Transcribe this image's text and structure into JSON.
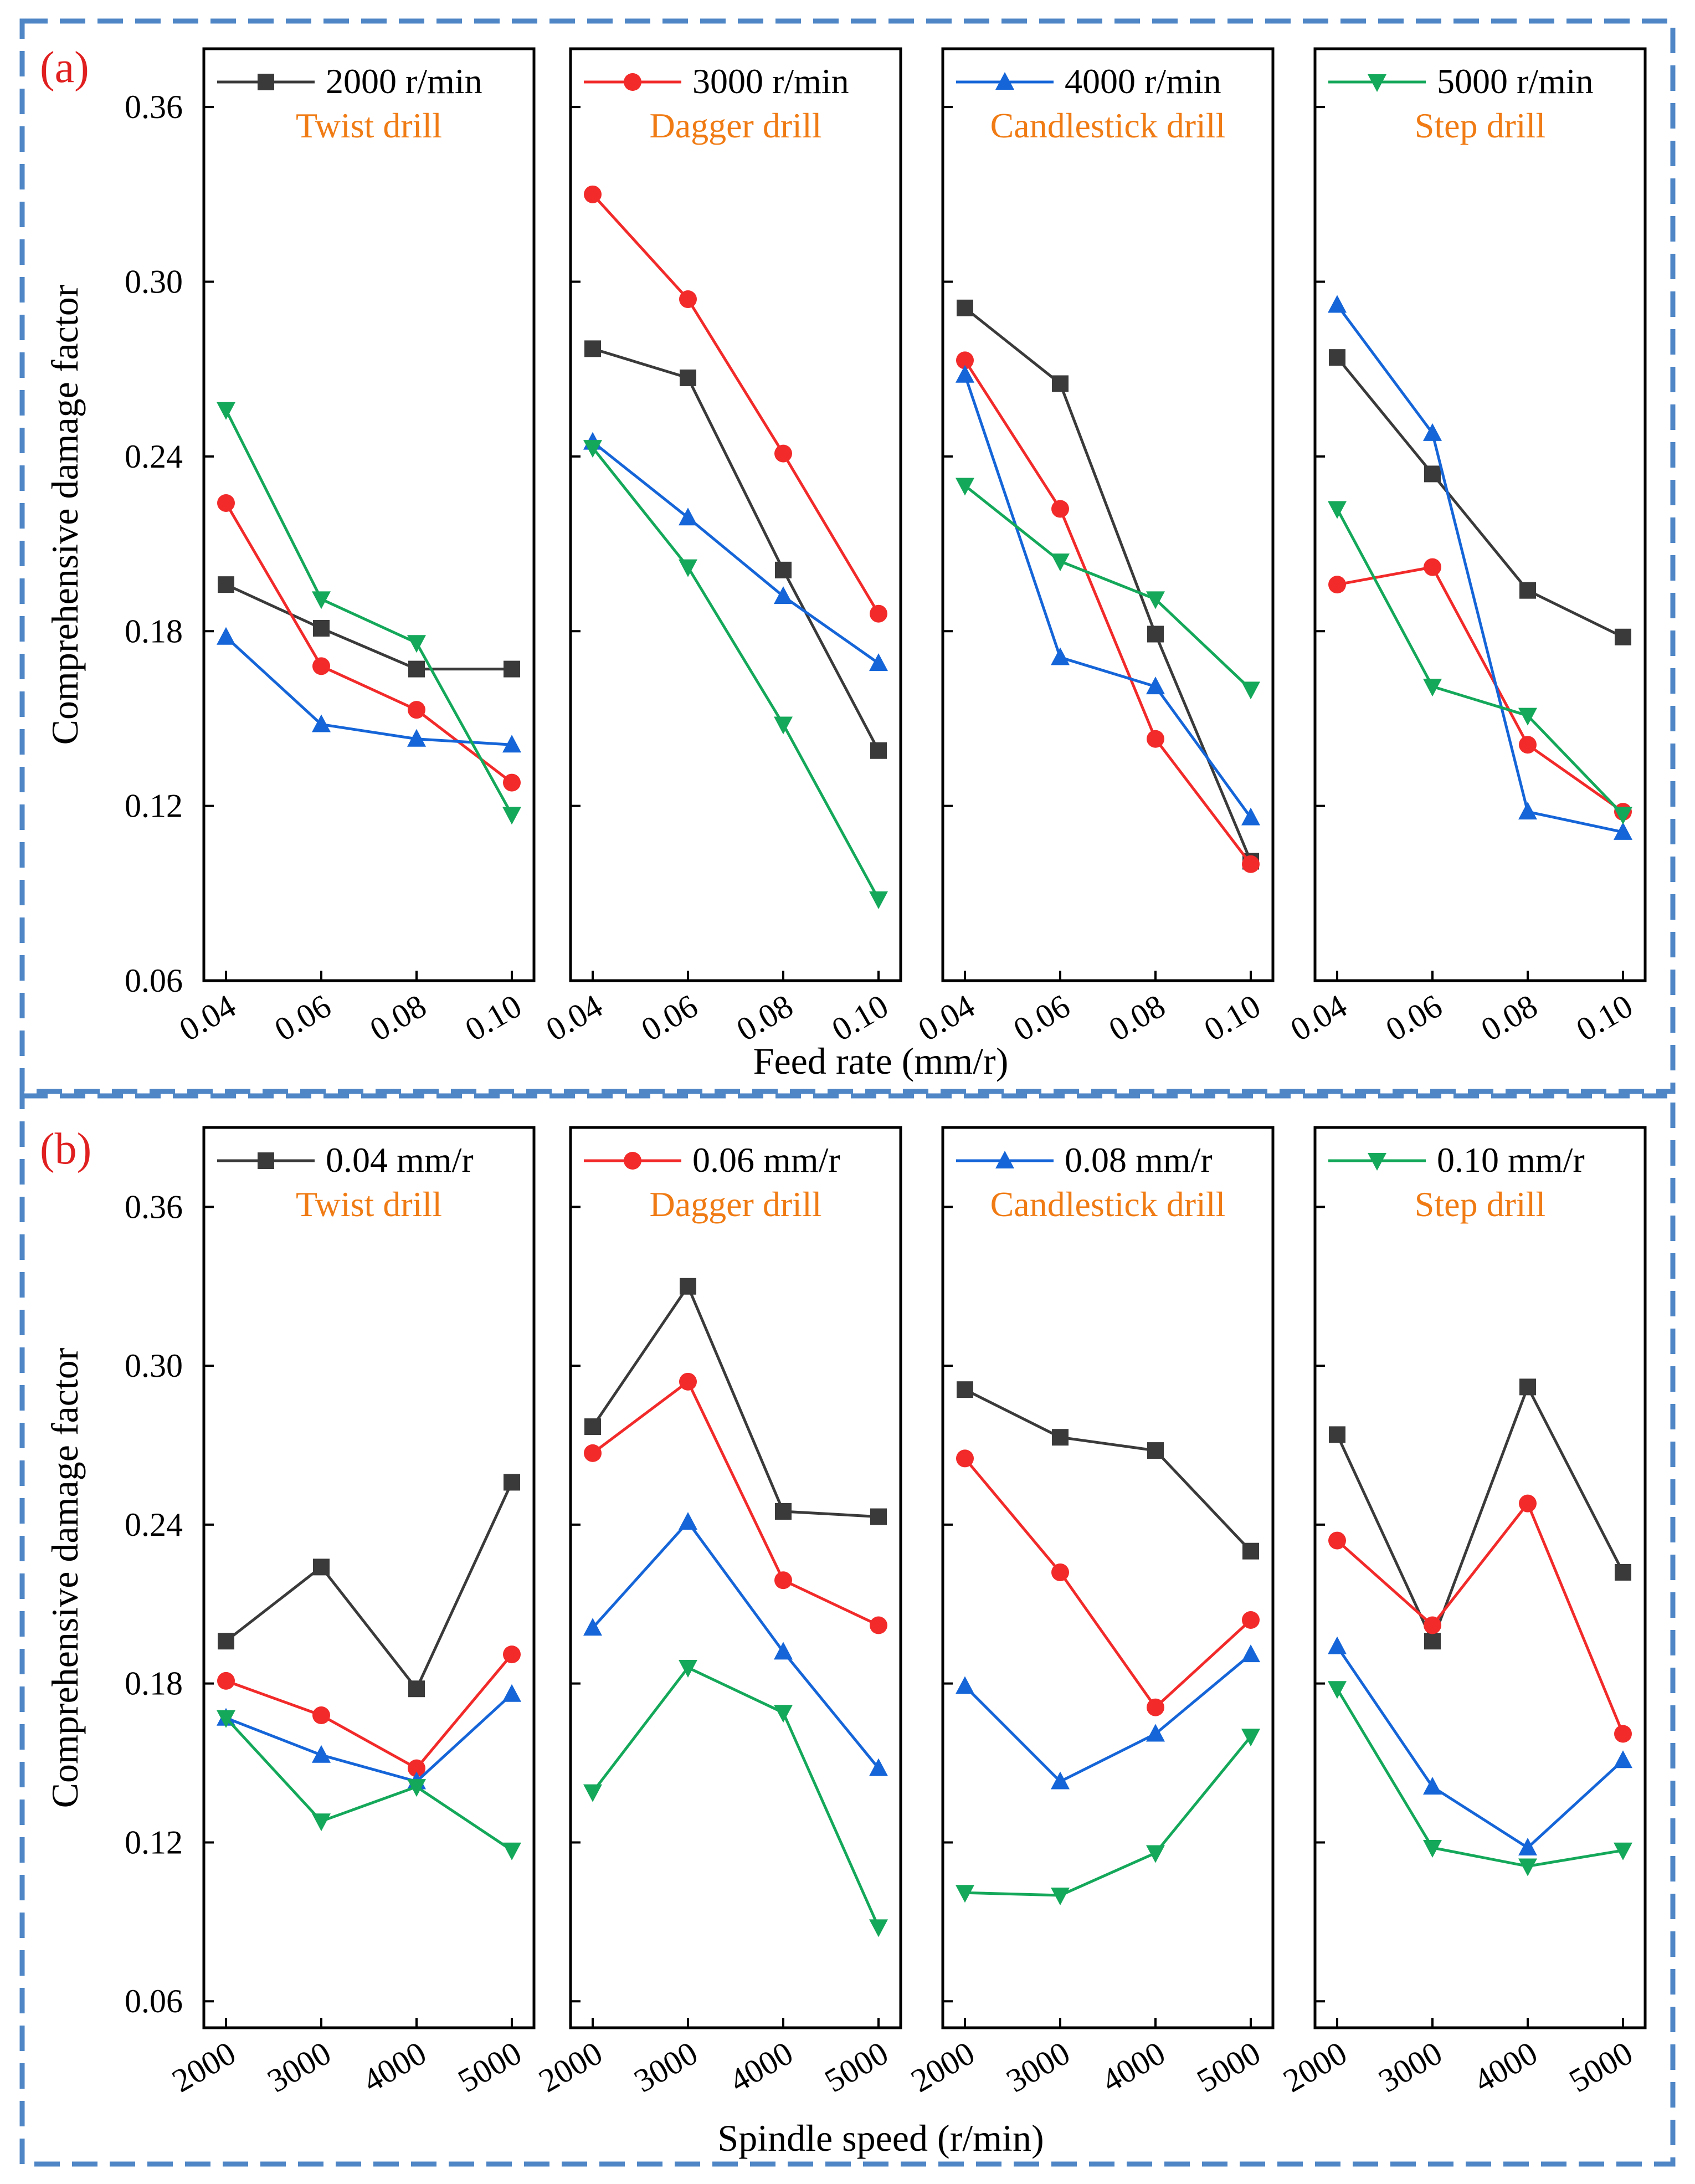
{
  "colors": {
    "series": [
      "#3a3a3a",
      "#f22a2a",
      "#1565d8",
      "#14a85a"
    ],
    "panel_title": "#f07b14",
    "panel_letter": "#e02020",
    "dashed_border": "#4f86c6"
  },
  "chart_data": [
    {
      "id": "a",
      "type": "line",
      "panel_label": "(a)",
      "ylabel": "Comprehensive damage factor",
      "xlabel": "Feed rate (mm/r)",
      "ylim": [
        0.06,
        0.38
      ],
      "yticks": [
        0.06,
        0.12,
        0.18,
        0.24,
        0.3,
        0.36
      ],
      "ytick_labels": [
        "0.06",
        "0.12",
        "0.18",
        "0.24",
        "0.30",
        "0.36"
      ],
      "categories": [
        "0.04",
        "0.06",
        "0.08",
        "0.10"
      ],
      "series_names": [
        "2000 r/min",
        "3000 r/min",
        "4000 r/min",
        "5000 r/min"
      ],
      "markers": [
        "square",
        "circle",
        "triangle-up",
        "triangle-down"
      ],
      "subplots": [
        {
          "title": "Twist drill",
          "series": [
            {
              "name": "2000 r/min",
              "values": [
                0.196,
                0.181,
                0.167,
                0.167
              ]
            },
            {
              "name": "3000 r/min",
              "values": [
                0.224,
                0.168,
                0.153,
                0.128
              ]
            },
            {
              "name": "4000 r/min",
              "values": [
                0.178,
                0.148,
                0.143,
                0.141
              ]
            },
            {
              "name": "5000 r/min",
              "values": [
                0.256,
                0.191,
                0.176,
                0.117
              ]
            }
          ]
        },
        {
          "title": "Dagger drill",
          "series": [
            {
              "name": "2000 r/min",
              "values": [
                0.277,
                0.267,
                0.201,
                0.139
              ]
            },
            {
              "name": "3000 r/min",
              "values": [
                0.33,
                0.294,
                0.241,
                0.186
              ]
            },
            {
              "name": "4000 r/min",
              "values": [
                0.245,
                0.219,
                0.192,
                0.169
              ]
            },
            {
              "name": "5000 r/min",
              "values": [
                0.243,
                0.202,
                0.148,
                0.088
              ]
            }
          ]
        },
        {
          "title": "Candlestick drill",
          "series": [
            {
              "name": "2000 r/min",
              "values": [
                0.291,
                0.265,
                0.179,
                0.101
              ]
            },
            {
              "name": "3000 r/min",
              "values": [
                0.273,
                0.222,
                0.143,
                0.1
              ]
            },
            {
              "name": "4000 r/min",
              "values": [
                0.268,
                0.171,
                0.161,
                0.116
              ]
            },
            {
              "name": "5000 r/min",
              "values": [
                0.23,
                0.204,
                0.191,
                0.16
              ]
            }
          ]
        },
        {
          "title": "Step drill",
          "series": [
            {
              "name": "2000 r/min",
              "values": [
                0.274,
                0.234,
                0.194,
                0.178
              ]
            },
            {
              "name": "3000 r/min",
              "values": [
                0.196,
                0.202,
                0.141,
                0.118
              ]
            },
            {
              "name": "4000 r/min",
              "values": [
                0.292,
                0.248,
                0.118,
                0.111
              ]
            },
            {
              "name": "5000 r/min",
              "values": [
                0.222,
                0.161,
                0.151,
                0.117
              ]
            }
          ]
        }
      ]
    },
    {
      "id": "b",
      "type": "line",
      "panel_label": "(b)",
      "ylabel": "Comprehensive damage factor",
      "xlabel": "Spindle speed (r/min)",
      "ylim": [
        0.05,
        0.39
      ],
      "yticks": [
        0.06,
        0.12,
        0.18,
        0.24,
        0.3,
        0.36
      ],
      "ytick_labels": [
        "0.06",
        "0.12",
        "0.18",
        "0.24",
        "0.30",
        "0.36"
      ],
      "categories": [
        "2000",
        "3000",
        "4000",
        "5000"
      ],
      "series_names": [
        "0.04 mm/r",
        "0.06 mm/r",
        "0.08 mm/r",
        "0.10 mm/r"
      ],
      "markers": [
        "square",
        "circle",
        "triangle-up",
        "triangle-down"
      ],
      "subplots": [
        {
          "title": "Twist drill",
          "series": [
            {
              "name": "0.04 mm/r",
              "values": [
                0.196,
                0.224,
                0.178,
                0.256
              ]
            },
            {
              "name": "0.06 mm/r",
              "values": [
                0.181,
                0.168,
                0.148,
                0.191
              ]
            },
            {
              "name": "0.08 mm/r",
              "values": [
                0.167,
                0.153,
                0.143,
                0.176
              ]
            },
            {
              "name": "0.10 mm/r",
              "values": [
                0.167,
                0.128,
                0.141,
                0.117
              ]
            }
          ]
        },
        {
          "title": "Dagger drill",
          "series": [
            {
              "name": "0.04 mm/r",
              "values": [
                0.277,
                0.33,
                0.245,
                0.243
              ]
            },
            {
              "name": "0.06 mm/r",
              "values": [
                0.267,
                0.294,
                0.219,
                0.202
              ]
            },
            {
              "name": "0.08 mm/r",
              "values": [
                0.201,
                0.241,
                0.192,
                0.148
              ]
            },
            {
              "name": "0.10 mm/r",
              "values": [
                0.139,
                0.186,
                0.169,
                0.088
              ]
            }
          ]
        },
        {
          "title": "Candlestick drill",
          "series": [
            {
              "name": "0.04 mm/r",
              "values": [
                0.291,
                0.273,
                0.268,
                0.23
              ]
            },
            {
              "name": "0.06 mm/r",
              "values": [
                0.265,
                0.222,
                0.171,
                0.204
              ]
            },
            {
              "name": "0.08 mm/r",
              "values": [
                0.179,
                0.143,
                0.161,
                0.191
              ]
            },
            {
              "name": "0.10 mm/r",
              "values": [
                0.101,
                0.1,
                0.116,
                0.16
              ]
            }
          ]
        },
        {
          "title": "Step drill",
          "series": [
            {
              "name": "0.04 mm/r",
              "values": [
                0.274,
                0.196,
                0.292,
                0.222
              ]
            },
            {
              "name": "0.06 mm/r",
              "values": [
                0.234,
                0.202,
                0.248,
                0.161
              ]
            },
            {
              "name": "0.08 mm/r",
              "values": [
                0.194,
                0.141,
                0.118,
                0.151
              ]
            },
            {
              "name": "0.10 mm/r",
              "values": [
                0.178,
                0.118,
                0.111,
                0.117
              ]
            }
          ]
        }
      ]
    }
  ]
}
